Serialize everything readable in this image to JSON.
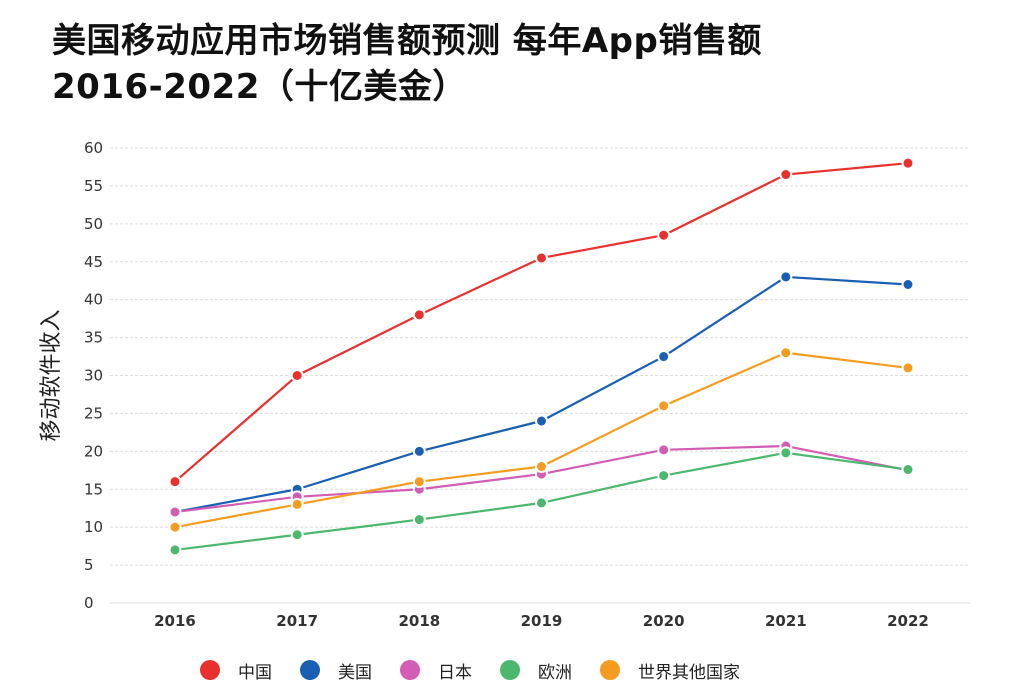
{
  "title": "美国移动应用市场销售额预测 每年App销售额2016-2022（十亿美金）",
  "chart_data": {
    "type": "line",
    "title": "美国移动应用市场销售额预测 每年App销售额2016-2022（十亿美金）",
    "xlabel": "",
    "ylabel": "移动软件收入",
    "categories": [
      "2016",
      "2017",
      "2018",
      "2019",
      "2020",
      "2021",
      "2022"
    ],
    "ylim": [
      0,
      60
    ],
    "yticks": [
      0,
      5,
      10,
      15,
      20,
      25,
      30,
      35,
      40,
      45,
      50,
      55,
      60
    ],
    "grid": true,
    "legend_position": "bottom",
    "series": [
      {
        "name": "中国",
        "color": "#e8312f",
        "values": [
          16,
          30,
          38,
          45.5,
          48.5,
          56.5,
          58
        ]
      },
      {
        "name": "美国",
        "color": "#1a5fb4",
        "values": [
          12,
          15,
          20,
          24,
          32.5,
          43,
          42
        ]
      },
      {
        "name": "日本",
        "color": "#d35cb4",
        "values": [
          12,
          14,
          15,
          17,
          20.2,
          20.7,
          17.5
        ]
      },
      {
        "name": "欧洲",
        "color": "#4bb86e",
        "values": [
          7,
          9,
          11,
          13.2,
          16.8,
          19.8,
          17.6
        ]
      },
      {
        "name": "世界其他国家",
        "color": "#f39c1f",
        "values": [
          10,
          13,
          16,
          18,
          26,
          33,
          31
        ]
      }
    ]
  }
}
